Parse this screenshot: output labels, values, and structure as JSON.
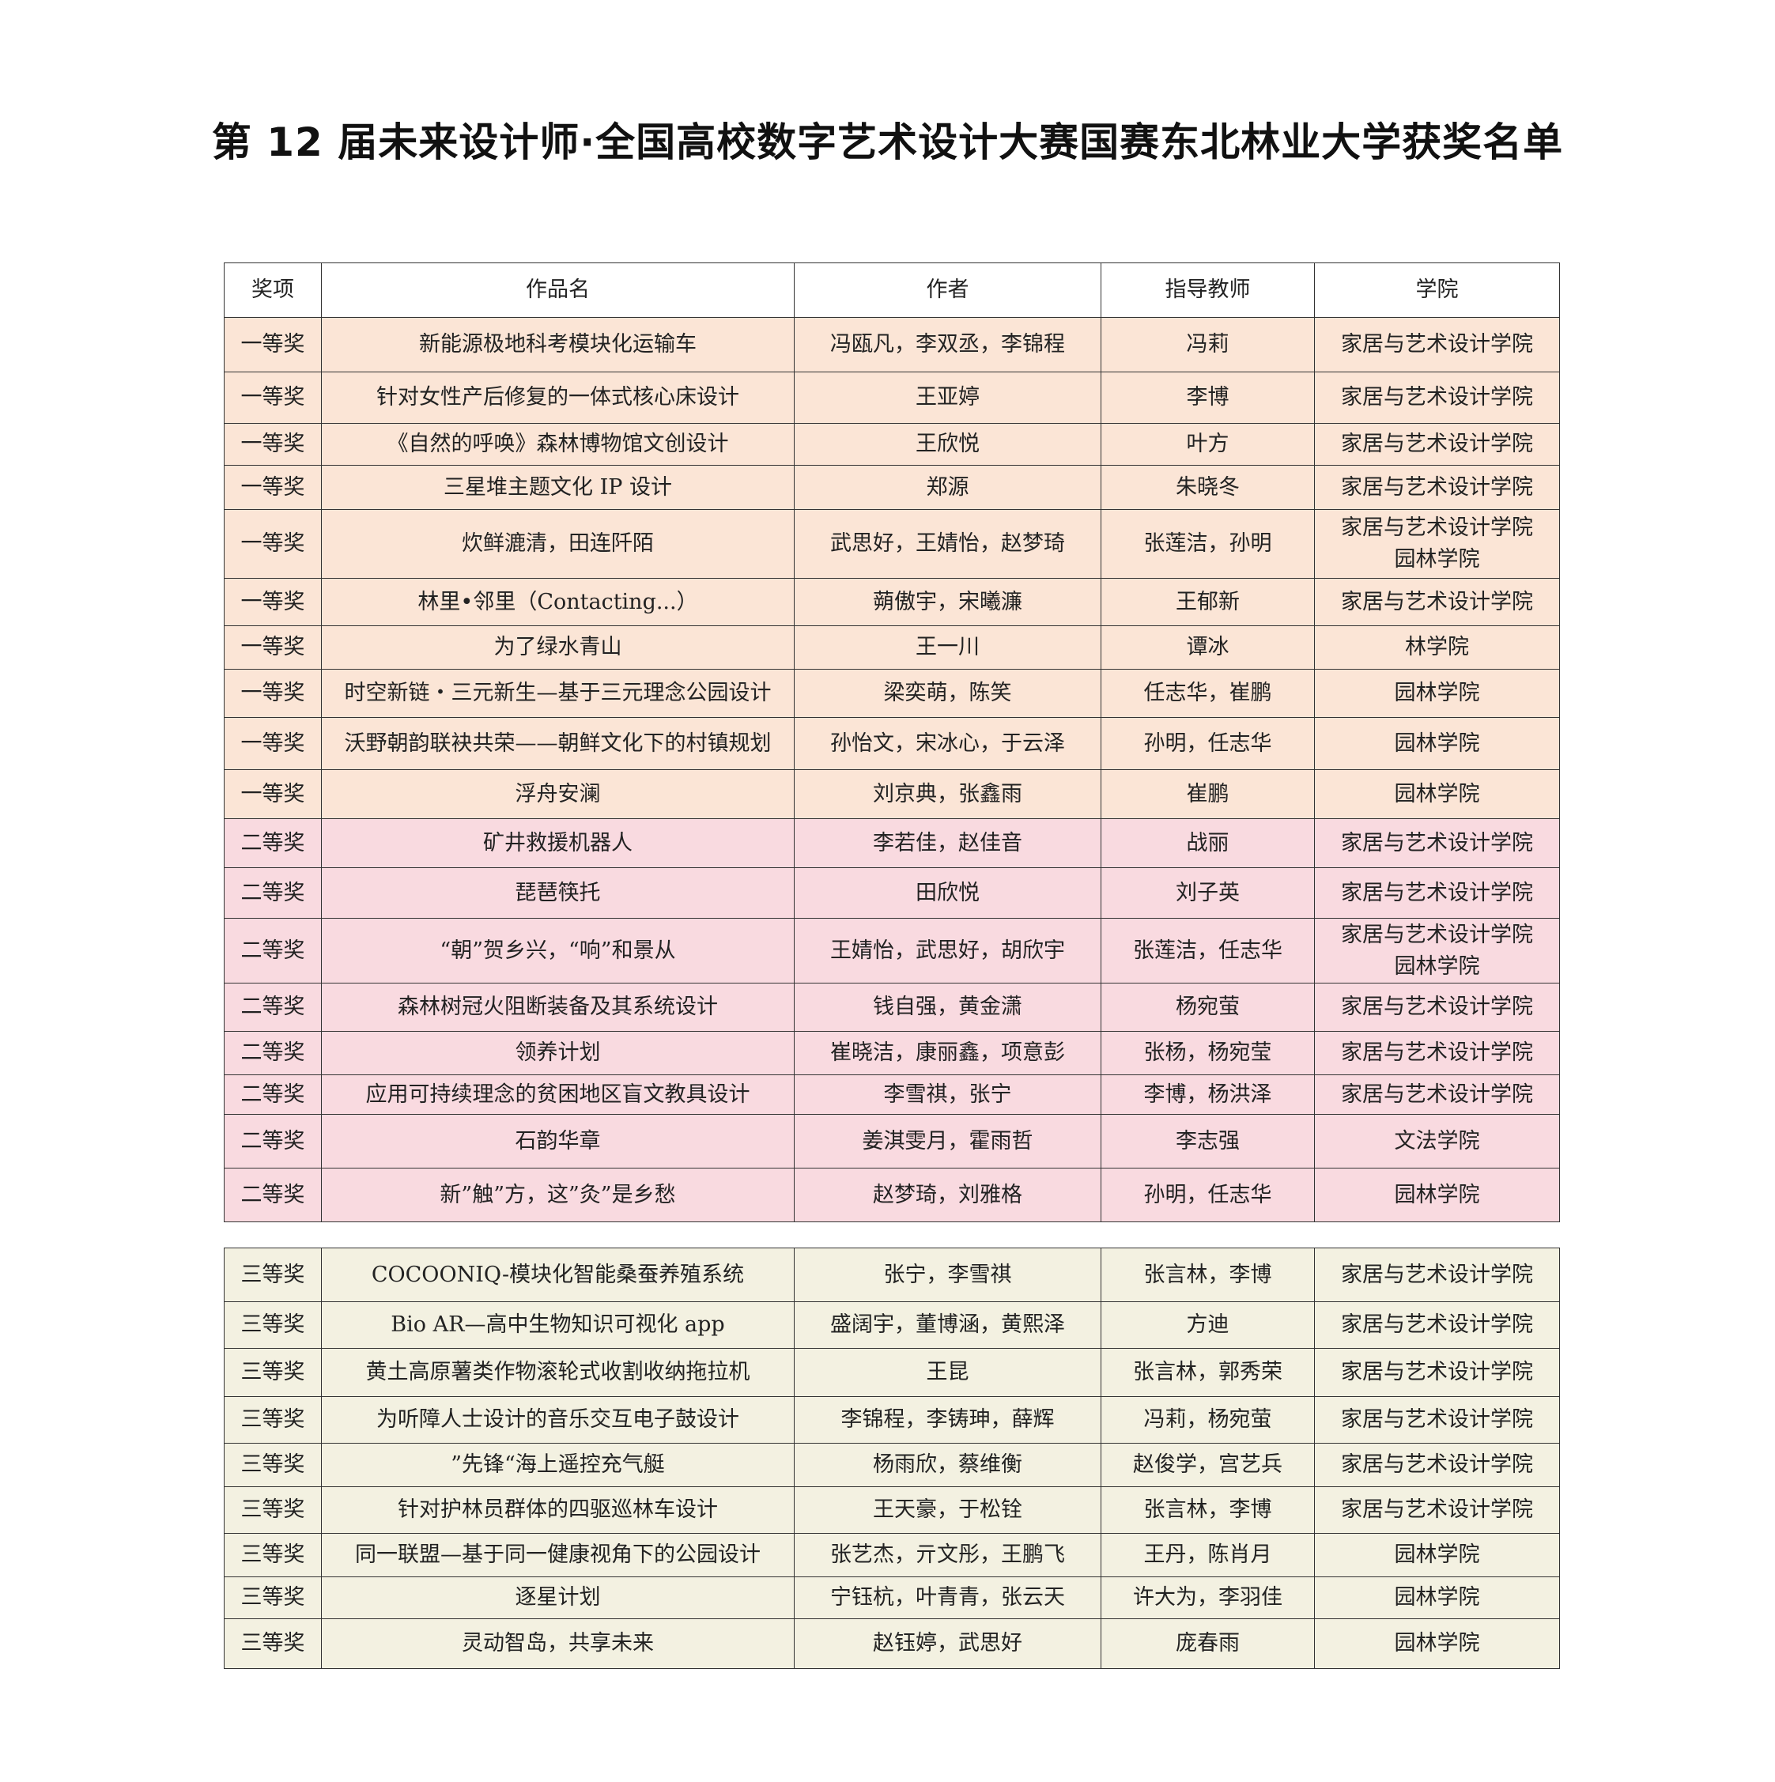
{
  "title": "第 12 届未来设计师·全国高校数字艺术设计大赛国赛东北林业大学获奖名单",
  "headers": [
    "奖项",
    "作品名",
    "作者",
    "指导教师",
    "学院"
  ],
  "row_colors": {
    "一等奖": "#FBE5D6",
    "二等奖": "#F9DAE0",
    "三等奖": "#F3F1E1"
  },
  "table1_rows": [
    [
      "一等奖",
      "新能源极地科考模块化运输车",
      "冯瓯凡，李双丞，李锦程",
      "冯莉",
      "家居与艺术设计学院"
    ],
    [
      "一等奖",
      "针对女性产后修复的一体式核心床设计",
      "王亚婷",
      "李博",
      "家居与艺术设计学院"
    ],
    [
      "一等奖",
      "《自然的呼唤》森林博物馆文创设计",
      "王欣悦",
      "叶方",
      "家居与艺术设计学院"
    ],
    [
      "一等奖",
      "三星堆主题文化 IP 设计",
      "郑源",
      "朱晓冬",
      "家居与艺术设计学院"
    ],
    [
      "一等奖",
      "炊鲜漉清，田连阡陌",
      "武思好，王婧怡，赵梦琦",
      "张莲洁，孙明",
      "家居与艺术设计学院\n园林学院"
    ],
    [
      "一等奖",
      "林里•邻里（Contacting...）",
      "蒴傲宇，宋曦濂",
      "王郁新",
      "家居与艺术设计学院"
    ],
    [
      "一等奖",
      "为了绿水青山",
      "王一川",
      "谭冰",
      "林学院"
    ],
    [
      "一等奖",
      "时空新链・三元新生—基于三元理念公园设计",
      "梁奕萌，陈笑",
      "任志华，崔鹏",
      "园林学院"
    ],
    [
      "一等奖",
      "沃野朝韵联袂共荣——朝鲜文化下的村镇规划",
      "孙怡文，宋冰心，于云泽",
      "孙明，任志华",
      "园林学院"
    ],
    [
      "一等奖",
      "浮舟安澜",
      "刘京典，张鑫雨",
      "崔鹏",
      "园林学院"
    ],
    [
      "二等奖",
      "矿井救援机器人",
      "李若佳，赵佳音",
      "战丽",
      "家居与艺术设计学院"
    ],
    [
      "二等奖",
      "琵琶筷托",
      "田欣悦",
      "刘子英",
      "家居与艺术设计学院"
    ],
    [
      "二等奖",
      "“朝”贺乡兴，“响”和景从",
      "王婧怡，武思好，胡欣宇",
      "张莲洁，任志华",
      "家居与艺术设计学院\n园林学院"
    ],
    [
      "二等奖",
      "森林树冠火阻断装备及其系统设计",
      "钱自强，黄金潇",
      "杨宛萤",
      "家居与艺术设计学院"
    ],
    [
      "二等奖",
      "领养计划",
      "崔晓洁，康丽鑫，项意彭",
      "张杨，杨宛莹",
      "家居与艺术设计学院"
    ],
    [
      "二等奖",
      "应用可持续理念的贫困地区盲文教具设计",
      "李雪祺，张宁",
      "李博，杨洪泽",
      "家居与艺术设计学院"
    ],
    [
      "二等奖",
      "石韵华章",
      "姜淇雯月，霍雨哲",
      "李志强",
      "文法学院"
    ],
    [
      "二等奖",
      "新”触”方，这”灸”是乡愁",
      "赵梦琦，刘雅格",
      "孙明，任志华",
      "园林学院"
    ]
  ],
  "table2_rows": [
    [
      "三等奖",
      "COCOONIQ-模块化智能桑蚕养殖系统",
      "张宁，李雪祺",
      "张言林，李博",
      "家居与艺术设计学院"
    ],
    [
      "三等奖",
      "Bio AR—高中生物知识可视化 app",
      "盛阔宇，董博涵，黄熙泽",
      "方迪",
      "家居与艺术设计学院"
    ],
    [
      "三等奖",
      "黄土高原薯类作物滚轮式收割收纳拖拉机",
      "王昆",
      "张言林，郭秀荣",
      "家居与艺术设计学院"
    ],
    [
      "三等奖",
      "为听障人士设计的音乐交互电子鼓设计",
      "李锦程，李铸珅，薛辉",
      "冯莉，杨宛萤",
      "家居与艺术设计学院"
    ],
    [
      "三等奖",
      "”先锋“海上遥控充气艇",
      "杨雨欣，蔡维衡",
      "赵俊学，宫艺兵",
      "家居与艺术设计学院"
    ],
    [
      "三等奖",
      "针对护林员群体的四驱巡林车设计",
      "王天豪，于松铨",
      "张言林，李博",
      "家居与艺术设计学院"
    ],
    [
      "三等奖",
      "同一联盟—基于同一健康视角下的公园设计",
      "张艺杰，亓文彤，王鹏飞",
      "王丹，陈肖月",
      "园林学院"
    ],
    [
      "三等奖",
      "逐星计划",
      "宁钰杭，叶青青，张云天",
      "许大为，李羽佳",
      "园林学院"
    ],
    [
      "三等奖",
      "灵动智岛，共享未来",
      "赵钰婷，武思好",
      "庞春雨",
      "园林学院"
    ]
  ]
}
